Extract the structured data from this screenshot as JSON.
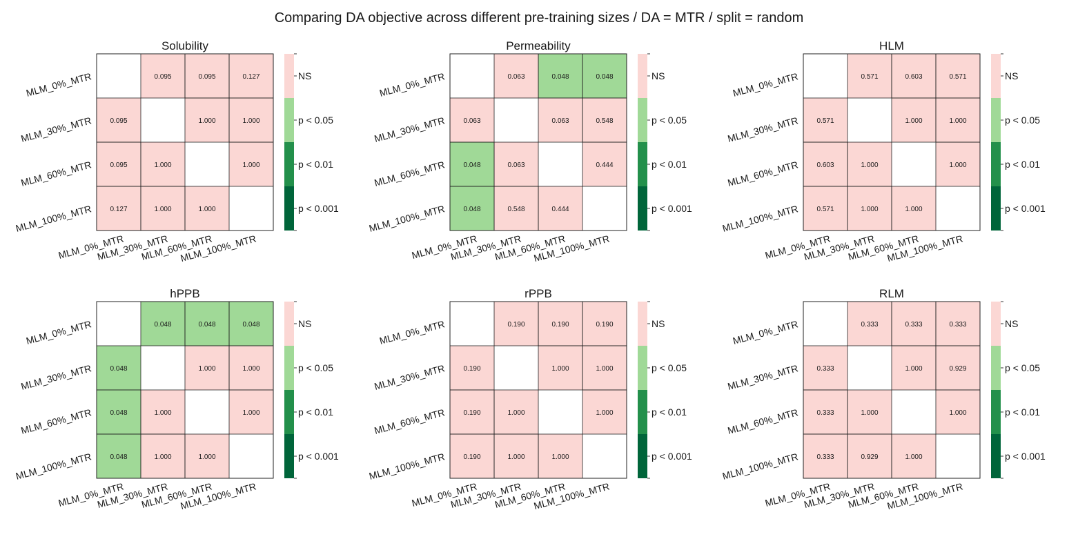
{
  "title": "Comparing DA objective across different pre-training sizes / DA = MTR / split = random",
  "colors": {
    "ns": "#fbd7d4",
    "p05": "#a0d997",
    "p01": "#23904b",
    "p001": "#00653a",
    "diagonal": "#ffffff",
    "border": "#222222"
  },
  "legend_labels": [
    "NS",
    "p < 0.05",
    "p < 0.01",
    "p < 0.001"
  ],
  "chart_data": [
    {
      "type": "heatmap",
      "title": "Solubility",
      "rows": [
        "MLM_0%_MTR",
        "MLM_30%_MTR",
        "MLM_60%_MTR",
        "MLM_100%_MTR"
      ],
      "cols": [
        "MLM_0%_MTR",
        "MLM_30%_MTR",
        "MLM_60%_MTR",
        "MLM_100%_MTR"
      ],
      "values": [
        [
          null,
          0.095,
          0.095,
          0.127
        ],
        [
          0.095,
          null,
          1.0,
          1.0
        ],
        [
          0.095,
          1.0,
          null,
          1.0
        ],
        [
          0.127,
          1.0,
          1.0,
          null
        ]
      ]
    },
    {
      "type": "heatmap",
      "title": "Permeability",
      "rows": [
        "MLM_0%_MTR",
        "MLM_30%_MTR",
        "MLM_60%_MTR",
        "MLM_100%_MTR"
      ],
      "cols": [
        "MLM_0%_MTR",
        "MLM_30%_MTR",
        "MLM_60%_MTR",
        "MLM_100%_MTR"
      ],
      "values": [
        [
          null,
          0.063,
          0.048,
          0.048
        ],
        [
          0.063,
          null,
          0.063,
          0.548
        ],
        [
          0.048,
          0.063,
          null,
          0.444
        ],
        [
          0.048,
          0.548,
          0.444,
          null
        ]
      ]
    },
    {
      "type": "heatmap",
      "title": "HLM",
      "rows": [
        "MLM_0%_MTR",
        "MLM_30%_MTR",
        "MLM_60%_MTR",
        "MLM_100%_MTR"
      ],
      "cols": [
        "MLM_0%_MTR",
        "MLM_30%_MTR",
        "MLM_60%_MTR",
        "MLM_100%_MTR"
      ],
      "values": [
        [
          null,
          0.571,
          0.603,
          0.571
        ],
        [
          0.571,
          null,
          1.0,
          1.0
        ],
        [
          0.603,
          1.0,
          null,
          1.0
        ],
        [
          0.571,
          1.0,
          1.0,
          null
        ]
      ]
    },
    {
      "type": "heatmap",
      "title": "hPPB",
      "rows": [
        "MLM_0%_MTR",
        "MLM_30%_MTR",
        "MLM_60%_MTR",
        "MLM_100%_MTR"
      ],
      "cols": [
        "MLM_0%_MTR",
        "MLM_30%_MTR",
        "MLM_60%_MTR",
        "MLM_100%_MTR"
      ],
      "values": [
        [
          null,
          0.048,
          0.048,
          0.048
        ],
        [
          0.048,
          null,
          1.0,
          1.0
        ],
        [
          0.048,
          1.0,
          null,
          1.0
        ],
        [
          0.048,
          1.0,
          1.0,
          null
        ]
      ]
    },
    {
      "type": "heatmap",
      "title": "rPPB",
      "rows": [
        "MLM_0%_MTR",
        "MLM_30%_MTR",
        "MLM_60%_MTR",
        "MLM_100%_MTR"
      ],
      "cols": [
        "MLM_0%_MTR",
        "MLM_30%_MTR",
        "MLM_60%_MTR",
        "MLM_100%_MTR"
      ],
      "values": [
        [
          null,
          0.19,
          0.19,
          0.19
        ],
        [
          0.19,
          null,
          1.0,
          1.0
        ],
        [
          0.19,
          1.0,
          null,
          1.0
        ],
        [
          0.19,
          1.0,
          1.0,
          null
        ]
      ]
    },
    {
      "type": "heatmap",
      "title": "RLM",
      "rows": [
        "MLM_0%_MTR",
        "MLM_30%_MTR",
        "MLM_60%_MTR",
        "MLM_100%_MTR"
      ],
      "cols": [
        "MLM_0%_MTR",
        "MLM_30%_MTR",
        "MLM_60%_MTR",
        "MLM_100%_MTR"
      ],
      "values": [
        [
          null,
          0.333,
          0.333,
          0.333
        ],
        [
          0.333,
          null,
          1.0,
          0.929
        ],
        [
          0.333,
          1.0,
          null,
          1.0
        ],
        [
          0.333,
          0.929,
          1.0,
          null
        ]
      ]
    }
  ]
}
